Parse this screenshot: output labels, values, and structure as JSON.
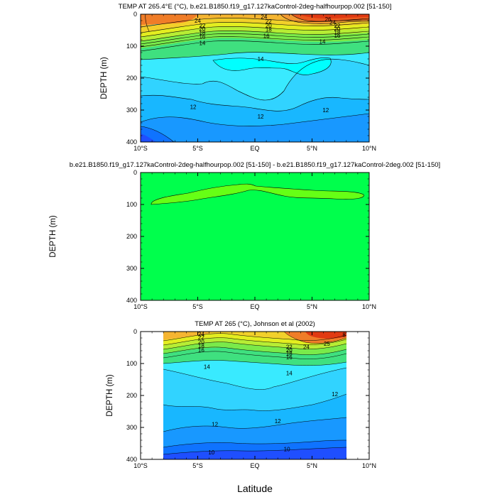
{
  "colors": {
    "c8": "#1f4fff",
    "c10": "#0f73ff",
    "c11": "#1898ff",
    "c12": "#18b7ff",
    "c13": "#31d3ff",
    "c14": "#39eaff",
    "c15": "#00ffff",
    "c16": "#3fe07f",
    "c17": "#7aea4a",
    "c18": "#b7ed34",
    "c19": "#e3ed20",
    "c20": "#f2d02a",
    "c22": "#f5b531",
    "c24": "#f39a32",
    "c25": "#f07d28",
    "c26": "#ea5a1e",
    "c27": "#e13a12",
    "diff_bg": "#00ff4c",
    "diff_pos": "#66ff15"
  },
  "x_label": "Latitude",
  "chart_data": [
    {
      "type": "contour",
      "title": "TEMP AT 265.4°E (°C), b.e21.B1850.f19_g17.127kaControl-2deg-halfhourpop.002 [51-150]",
      "ylabel": "DEPTH (m)",
      "xlabel": "",
      "xlim": [
        -10,
        10
      ],
      "ylim": [
        400,
        0
      ],
      "xticks": [
        "10°S",
        "5°S",
        "EQ",
        "5°N",
        "10°N"
      ],
      "yticks": [
        "0",
        "100",
        "200",
        "300",
        "400"
      ],
      "contour_labels": [
        {
          "text": "24",
          "lat": -5.0,
          "depth": 20
        },
        {
          "text": "22",
          "lat": -4.6,
          "depth": 35
        },
        {
          "text": "20",
          "lat": -4.6,
          "depth": 46
        },
        {
          "text": "18",
          "lat": -4.6,
          "depth": 58
        },
        {
          "text": "16",
          "lat": -4.6,
          "depth": 70
        },
        {
          "text": "14",
          "lat": -4.6,
          "depth": 90
        },
        {
          "text": "24",
          "lat": 0.8,
          "depth": 8
        },
        {
          "text": "22",
          "lat": 1.2,
          "depth": 22
        },
        {
          "text": "20",
          "lat": 1.2,
          "depth": 36
        },
        {
          "text": "18",
          "lat": 1.2,
          "depth": 48
        },
        {
          "text": "16",
          "lat": 1.0,
          "depth": 68
        },
        {
          "text": "14",
          "lat": 0.5,
          "depth": 140
        },
        {
          "text": "26",
          "lat": 6.4,
          "depth": 15
        },
        {
          "text": "24",
          "lat": 6.8,
          "depth": 26
        },
        {
          "text": "22",
          "lat": 7.2,
          "depth": 36
        },
        {
          "text": "20",
          "lat": 7.2,
          "depth": 46
        },
        {
          "text": "18",
          "lat": 7.2,
          "depth": 57
        },
        {
          "text": "16",
          "lat": 7.2,
          "depth": 67
        },
        {
          "text": "14",
          "lat": 5.9,
          "depth": 85
        },
        {
          "text": "12",
          "lat": -5.4,
          "depth": 290
        },
        {
          "text": "12",
          "lat": 0.5,
          "depth": 320
        },
        {
          "text": "12",
          "lat": 6.2,
          "depth": 300
        }
      ]
    },
    {
      "type": "contour",
      "title": "b.e21.B1850.f19_g17.127kaControl-2deg-halfhourpop.002 [51-150] - b.e21.B1850.f19_g17.127kaControl-2deg.002 [51-150]",
      "ylabel": "DEPTH (m)",
      "xlabel": "",
      "xlim": [
        -10,
        10
      ],
      "ylim": [
        400,
        0
      ],
      "xticks": [
        "10°S",
        "5°S",
        "EQ",
        "5°N",
        "10°N"
      ],
      "yticks": [
        "0",
        "100",
        "200",
        "300",
        "400"
      ],
      "contour_labels": []
    },
    {
      "type": "contour",
      "title": "TEMP AT 265 (°C), Johnson et al (2002)",
      "ylabel": "DEPTH (m)",
      "xlabel": "Latitude",
      "xlim": [
        -10,
        10
      ],
      "ylim": [
        400,
        0
      ],
      "data_lat_range": [
        -8,
        8
      ],
      "xticks": [
        "10°S",
        "5°S",
        "EQ",
        "5°N",
        "10°N"
      ],
      "yticks": [
        "0",
        "100",
        "200",
        "300",
        "400"
      ],
      "contour_labels": [
        {
          "text": "24",
          "lat": -4.7,
          "depth": 8
        },
        {
          "text": "22",
          "lat": -4.7,
          "depth": 18
        },
        {
          "text": "20",
          "lat": -4.7,
          "depth": 32
        },
        {
          "text": "18",
          "lat": -4.7,
          "depth": 44
        },
        {
          "text": "16",
          "lat": -4.7,
          "depth": 58
        },
        {
          "text": "22",
          "lat": 3.0,
          "depth": 48
        },
        {
          "text": "20",
          "lat": 3.0,
          "depth": 58
        },
        {
          "text": "18",
          "lat": 3.0,
          "depth": 68
        },
        {
          "text": "16",
          "lat": 3.0,
          "depth": 80
        },
        {
          "text": "24",
          "lat": 4.5,
          "depth": 48
        },
        {
          "text": "25",
          "lat": 6.3,
          "depth": 38
        },
        {
          "text": "8",
          "lat": 7.8,
          "depth": 10
        },
        {
          "text": "14",
          "lat": -4.2,
          "depth": 110
        },
        {
          "text": "14",
          "lat": 3.0,
          "depth": 130
        },
        {
          "text": "12",
          "lat": 7.0,
          "depth": 195
        },
        {
          "text": "12",
          "lat": -3.5,
          "depth": 290
        },
        {
          "text": "12",
          "lat": 2.0,
          "depth": 280
        },
        {
          "text": "10",
          "lat": -3.8,
          "depth": 378
        },
        {
          "text": "10",
          "lat": 2.8,
          "depth": 368
        }
      ]
    }
  ]
}
